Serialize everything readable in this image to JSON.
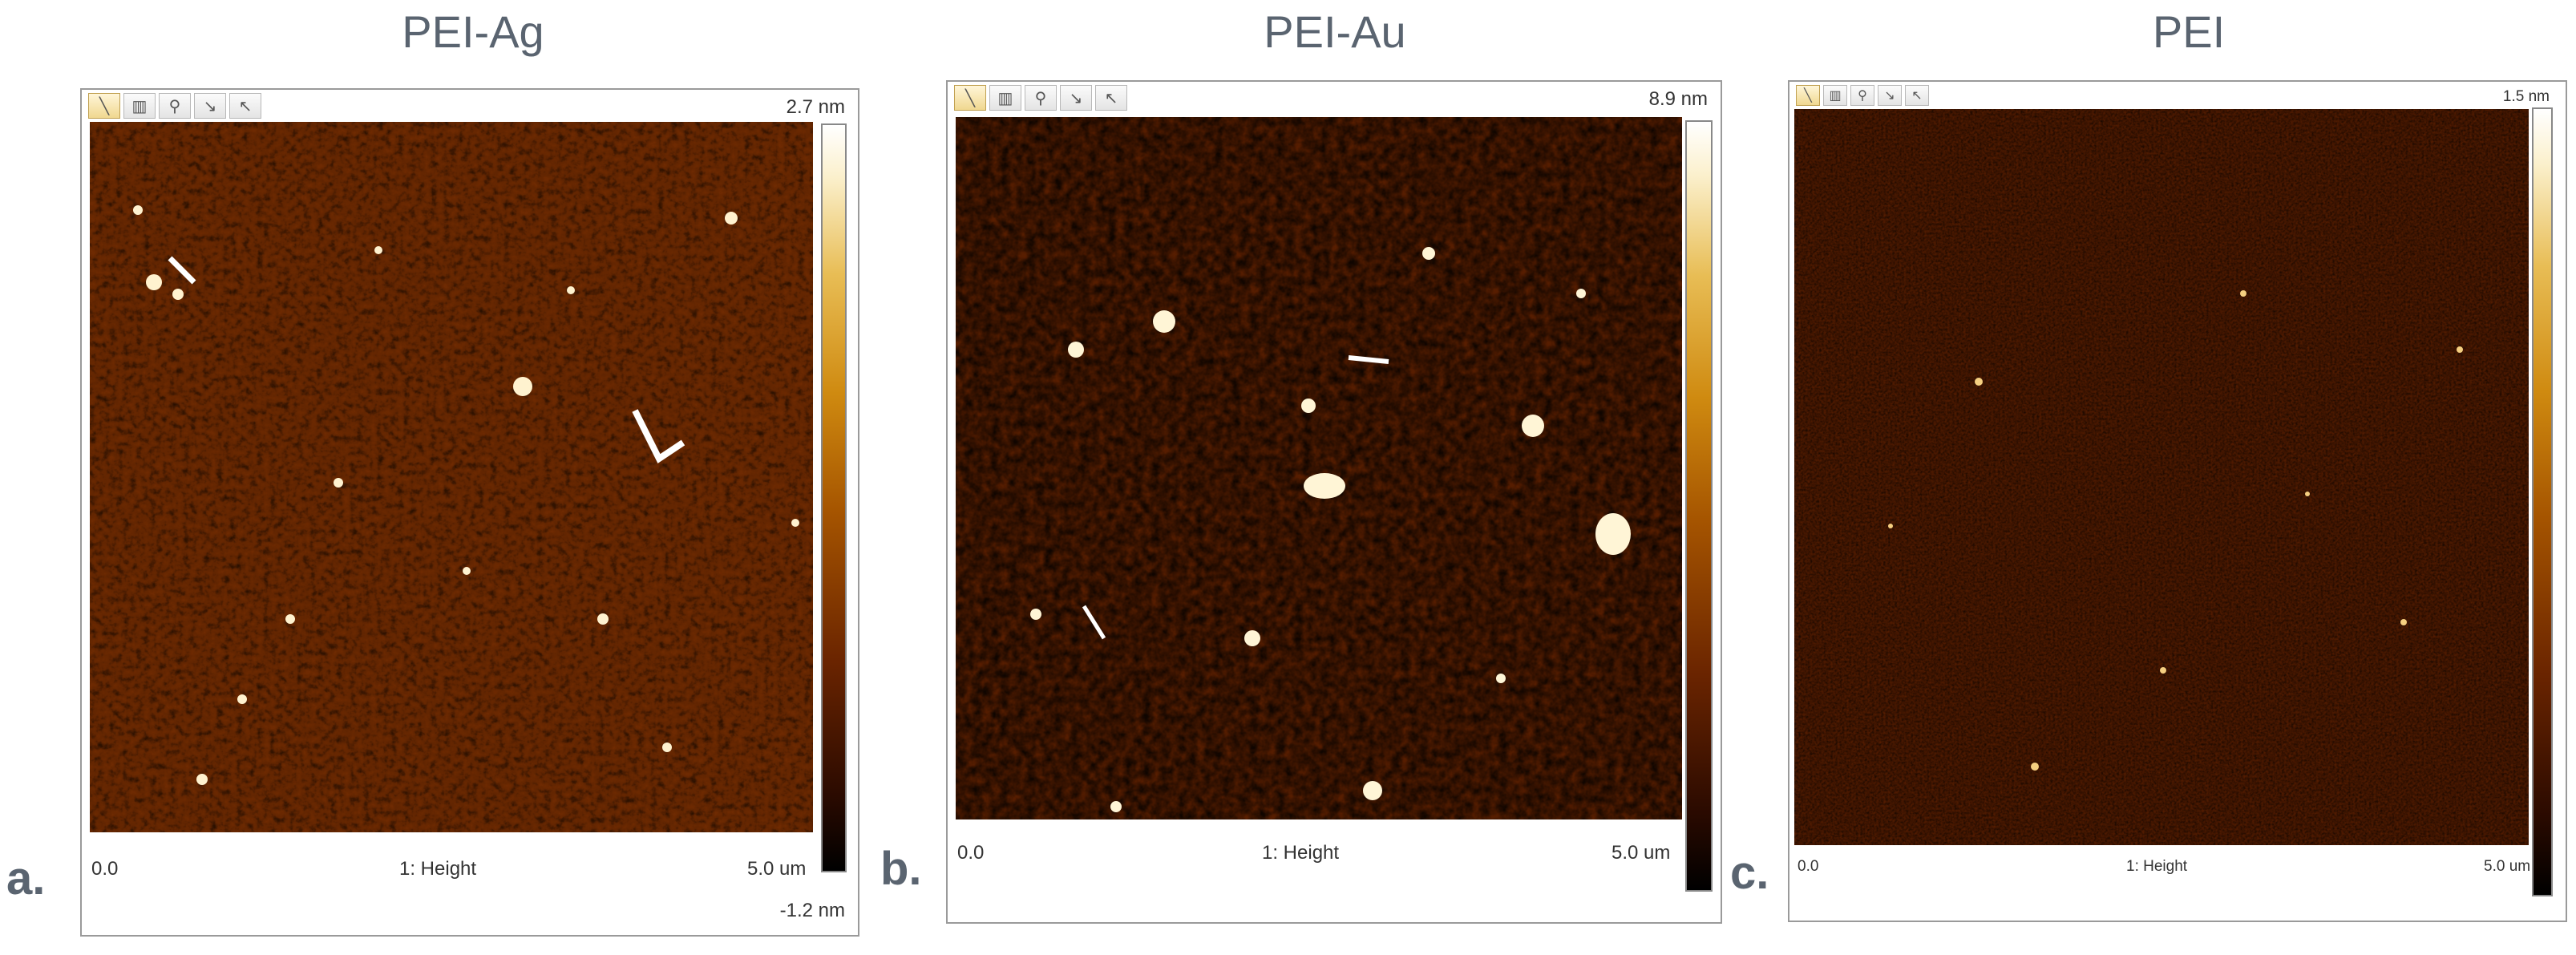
{
  "panels": [
    {
      "letter": "a.",
      "title": "PEI-Ag",
      "channel": "1: Height",
      "x_start": "0.0",
      "x_end": "5.0 um",
      "z_max": "2.7 nm",
      "z_min": "-1.2 nm"
    },
    {
      "letter": "b.",
      "title": "PEI-Au",
      "channel": "1: Height",
      "x_start": "0.0",
      "x_end": "5.0 um",
      "z_max": "8.9 nm",
      "z_min": ""
    },
    {
      "letter": "c.",
      "title": "PEI",
      "channel": "1: Height",
      "x_start": "0.0",
      "x_end": "5.0 um",
      "z_max": "1.5 nm",
      "z_min": ""
    }
  ],
  "toolbar_icons": [
    "ruler-icon",
    "graph-icon",
    "zoom-in-icon",
    "zoom-area-icon",
    "zoom-out-icon"
  ],
  "colors": {
    "label_gray": "#5a6470",
    "afm_dark": "#6a2400",
    "afm_mid": "#a55400",
    "afm_bright": "#f5d68a"
  }
}
